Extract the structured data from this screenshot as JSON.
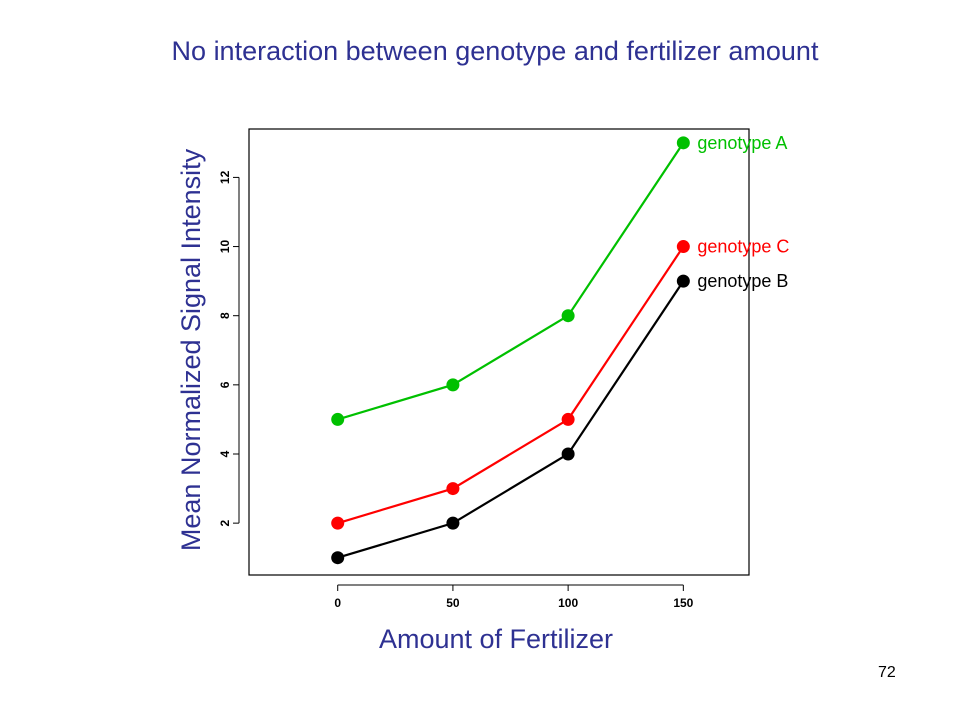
{
  "slide": {
    "title": "No interaction between genotype and fertilizer amount",
    "page_number": "72"
  },
  "chart_data": {
    "type": "line",
    "title": "",
    "xlabel": "Amount of Fertilizer",
    "ylabel": "Mean Normalized Signal Intensity",
    "x": [
      0,
      50,
      100,
      150
    ],
    "xticks": [
      "0",
      "50",
      "100",
      "150"
    ],
    "yticks": [
      "2",
      "4",
      "6",
      "8",
      "10",
      "12"
    ],
    "xlim": [
      -38.5,
      178.5
    ],
    "ylim": [
      0.5,
      13.4
    ],
    "grid": false,
    "legend": "direct labels at line ends",
    "series": [
      {
        "name": "genotype A",
        "values": [
          5,
          6,
          8,
          13
        ],
        "color": "#00c000"
      },
      {
        "name": "genotype C",
        "values": [
          2,
          3,
          5,
          10
        ],
        "color": "#ff0000"
      },
      {
        "name": "genotype B",
        "values": [
          1,
          2,
          4,
          9
        ],
        "color": "#000000"
      }
    ]
  }
}
